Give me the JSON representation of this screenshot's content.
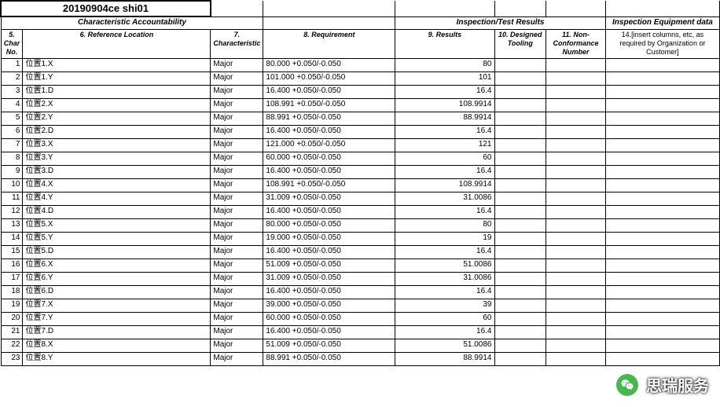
{
  "title": "20190904ce shi01",
  "group_headers": {
    "char_acc": "Characteristic Accountability",
    "insp_res": "Inspection/Test Results",
    "equip": "Inspection Equipment data"
  },
  "column_headers": {
    "c1": "5. Char No.",
    "c2": "6. Reference Location",
    "c3": "7. Characteristic",
    "c4": "8. Requirement",
    "c5": "9. Results",
    "c6": "10. Designed Tooling",
    "c7": "11. Non-Conformance Number",
    "c8": "14.[insert columns, etc, as required by Organization or Customer]"
  },
  "characteristic_value": "Major",
  "rows": [
    {
      "n": 1,
      "loc": "位置1.X",
      "req": "80.000  +0.050/-0.050",
      "res": "80"
    },
    {
      "n": 2,
      "loc": "位置1.Y",
      "req": "101.000  +0.050/-0.050",
      "res": "101"
    },
    {
      "n": 3,
      "loc": "位置1.D",
      "req": "16.400  +0.050/-0.050",
      "res": "16.4"
    },
    {
      "n": 4,
      "loc": "位置2.X",
      "req": "108.991  +0.050/-0.050",
      "res": "108.9914"
    },
    {
      "n": 5,
      "loc": "位置2.Y",
      "req": "88.991  +0.050/-0.050",
      "res": "88.9914"
    },
    {
      "n": 6,
      "loc": "位置2.D",
      "req": "16.400  +0.050/-0.050",
      "res": "16.4"
    },
    {
      "n": 7,
      "loc": "位置3.X",
      "req": "121.000  +0.050/-0.050",
      "res": "121"
    },
    {
      "n": 8,
      "loc": "位置3.Y",
      "req": "60.000  +0.050/-0.050",
      "res": "60"
    },
    {
      "n": 9,
      "loc": "位置3.D",
      "req": "16.400  +0.050/-0.050",
      "res": "16.4"
    },
    {
      "n": 10,
      "loc": "位置4.X",
      "req": "108.991  +0.050/-0.050",
      "res": "108.9914"
    },
    {
      "n": 11,
      "loc": "位置4.Y",
      "req": "31.009  +0.050/-0.050",
      "res": "31.0086"
    },
    {
      "n": 12,
      "loc": "位置4.D",
      "req": "16.400  +0.050/-0.050",
      "res": "16.4"
    },
    {
      "n": 13,
      "loc": "位置5.X",
      "req": "80.000  +0.050/-0.050",
      "res": "80"
    },
    {
      "n": 14,
      "loc": "位置5.Y",
      "req": "19.000  +0.050/-0.050",
      "res": "19"
    },
    {
      "n": 15,
      "loc": "位置5.D",
      "req": "16.400  +0.050/-0.050",
      "res": "16.4"
    },
    {
      "n": 16,
      "loc": "位置6.X",
      "req": "51.009  +0.050/-0.050",
      "res": "51.0086"
    },
    {
      "n": 17,
      "loc": "位置6.Y",
      "req": "31.009  +0.050/-0.050",
      "res": "31.0086"
    },
    {
      "n": 18,
      "loc": "位置6.D",
      "req": "16.400  +0.050/-0.050",
      "res": "16.4"
    },
    {
      "n": 19,
      "loc": "位置7.X",
      "req": "39.000  +0.050/-0.050",
      "res": "39"
    },
    {
      "n": 20,
      "loc": "位置7.Y",
      "req": "60.000  +0.050/-0.050",
      "res": "60"
    },
    {
      "n": 21,
      "loc": "位置7.D",
      "req": "16.400  +0.050/-0.050",
      "res": "16.4"
    },
    {
      "n": 22,
      "loc": "位置8.X",
      "req": "51.009  +0.050/-0.050",
      "res": "51.0086"
    },
    {
      "n": 23,
      "loc": "位置8.Y",
      "req": "88.991  +0.050/-0.050",
      "res": "88.9914"
    }
  ],
  "watermark": "思瑞服务",
  "colors": {
    "border": "#000000",
    "background": "#ffffff",
    "text": "#000000",
    "wm_bg": "#49b651",
    "wm_text": "#ffffff"
  }
}
